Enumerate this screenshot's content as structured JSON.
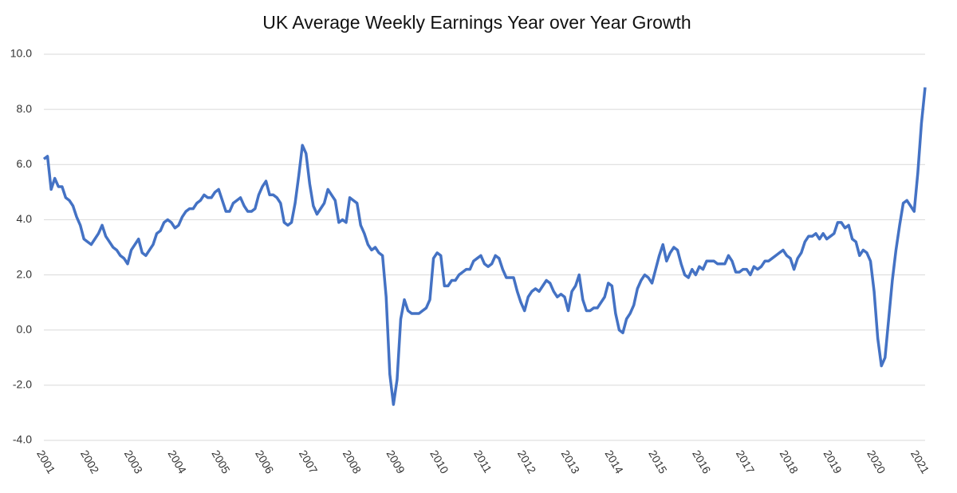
{
  "chart_data": {
    "type": "line",
    "title": "UK Average Weekly Earnings Year over Year Growth",
    "categories": [
      "2001",
      null,
      null,
      null,
      null,
      null,
      null,
      null,
      null,
      null,
      null,
      null,
      "2002",
      null,
      null,
      null,
      null,
      null,
      null,
      null,
      null,
      null,
      null,
      null,
      "2003",
      null,
      null,
      null,
      null,
      null,
      null,
      null,
      null,
      null,
      null,
      null,
      "2004",
      null,
      null,
      null,
      null,
      null,
      null,
      null,
      null,
      null,
      null,
      null,
      "2005",
      null,
      null,
      null,
      null,
      null,
      null,
      null,
      null,
      null,
      null,
      null,
      "2006",
      null,
      null,
      null,
      null,
      null,
      null,
      null,
      null,
      null,
      null,
      null,
      "2007",
      null,
      null,
      null,
      null,
      null,
      null,
      null,
      null,
      null,
      null,
      null,
      "2008",
      null,
      null,
      null,
      null,
      null,
      null,
      null,
      null,
      null,
      null,
      null,
      "2009",
      null,
      null,
      null,
      null,
      null,
      null,
      null,
      null,
      null,
      null,
      null,
      "2010",
      null,
      null,
      null,
      null,
      null,
      null,
      null,
      null,
      null,
      null,
      null,
      "2011",
      null,
      null,
      null,
      null,
      null,
      null,
      null,
      null,
      null,
      null,
      null,
      "2012",
      null,
      null,
      null,
      null,
      null,
      null,
      null,
      null,
      null,
      null,
      null,
      "2013",
      null,
      null,
      null,
      null,
      null,
      null,
      null,
      null,
      null,
      null,
      null,
      "2014",
      null,
      null,
      null,
      null,
      null,
      null,
      null,
      null,
      null,
      null,
      null,
      "2015",
      null,
      null,
      null,
      null,
      null,
      null,
      null,
      null,
      null,
      null,
      null,
      "2016",
      null,
      null,
      null,
      null,
      null,
      null,
      null,
      null,
      null,
      null,
      null,
      "2017",
      null,
      null,
      null,
      null,
      null,
      null,
      null,
      null,
      null,
      null,
      null,
      "2018",
      null,
      null,
      null,
      null,
      null,
      null,
      null,
      null,
      null,
      null,
      null,
      "2019",
      null,
      null,
      null,
      null,
      null,
      null,
      null,
      null,
      null,
      null,
      null,
      "2020",
      null,
      null,
      null,
      null,
      null,
      null,
      null,
      null,
      null,
      null,
      null,
      "2021",
      null,
      null
    ],
    "series": [
      {
        "color": "#4472c4",
        "values": [
          6.2,
          6.3,
          5.1,
          5.5,
          5.2,
          5.2,
          4.8,
          4.7,
          4.5,
          4.1,
          3.8,
          3.3,
          3.2,
          3.1,
          3.3,
          3.5,
          3.8,
          3.4,
          3.2,
          3.0,
          2.9,
          2.7,
          2.6,
          2.4,
          2.9,
          3.1,
          3.3,
          2.8,
          2.7,
          2.9,
          3.1,
          3.5,
          3.6,
          3.9,
          4.0,
          3.9,
          3.7,
          3.8,
          4.1,
          4.3,
          4.4,
          4.4,
          4.6,
          4.7,
          4.9,
          4.8,
          4.8,
          5.0,
          5.1,
          4.7,
          4.3,
          4.3,
          4.6,
          4.7,
          4.8,
          4.5,
          4.3,
          4.3,
          4.4,
          4.9,
          5.2,
          5.4,
          4.9,
          4.9,
          4.8,
          4.6,
          3.9,
          3.8,
          3.9,
          4.6,
          5.6,
          6.7,
          6.4,
          5.3,
          4.5,
          4.2,
          4.4,
          4.6,
          5.1,
          4.9,
          4.7,
          3.9,
          4.0,
          3.9,
          4.8,
          4.7,
          4.6,
          3.8,
          3.5,
          3.1,
          2.9,
          3.0,
          2.8,
          2.7,
          1.2,
          -1.6,
          -2.7,
          -1.8,
          0.4,
          1.1,
          0.7,
          0.6,
          0.6,
          0.6,
          0.7,
          0.8,
          1.1,
          2.6,
          2.8,
          2.7,
          1.6,
          1.6,
          1.8,
          1.8,
          2.0,
          2.1,
          2.2,
          2.2,
          2.5,
          2.6,
          2.7,
          2.4,
          2.3,
          2.4,
          2.7,
          2.6,
          2.2,
          1.9,
          1.9,
          1.9,
          1.4,
          1.0,
          0.7,
          1.2,
          1.4,
          1.5,
          1.4,
          1.6,
          1.8,
          1.7,
          1.4,
          1.2,
          1.3,
          1.2,
          0.7,
          1.4,
          1.6,
          2.0,
          1.1,
          0.7,
          0.7,
          0.8,
          0.8,
          1.0,
          1.2,
          1.7,
          1.6,
          0.6,
          0.0,
          -0.1,
          0.4,
          0.6,
          0.9,
          1.5,
          1.8,
          2.0,
          1.9,
          1.7,
          2.2,
          2.7,
          3.1,
          2.5,
          2.8,
          3.0,
          2.9,
          2.4,
          2.0,
          1.9,
          2.2,
          2.0,
          2.3,
          2.2,
          2.5,
          2.5,
          2.5,
          2.4,
          2.4,
          2.4,
          2.7,
          2.5,
          2.1,
          2.1,
          2.2,
          2.2,
          2.0,
          2.3,
          2.2,
          2.3,
          2.5,
          2.5,
          2.6,
          2.7,
          2.8,
          2.9,
          2.7,
          2.6,
          2.2,
          2.6,
          2.8,
          3.2,
          3.4,
          3.4,
          3.5,
          3.3,
          3.5,
          3.3,
          3.4,
          3.5,
          3.9,
          3.9,
          3.7,
          3.8,
          3.3,
          3.2,
          2.7,
          2.9,
          2.8,
          2.5,
          1.4,
          -0.3,
          -1.3,
          -1.0,
          0.4,
          1.8,
          2.9,
          3.8,
          4.6,
          4.7,
          4.5,
          4.3,
          5.7,
          7.5,
          8.8
        ]
      }
    ],
    "ylim": [
      -4,
      10
    ],
    "yticks": [
      {
        "value": -4,
        "label": "-4.0"
      },
      {
        "value": -2,
        "label": "-2.0"
      },
      {
        "value": 0,
        "label": "0.0"
      },
      {
        "value": 2,
        "label": "2.0"
      },
      {
        "value": 4,
        "label": "4.0"
      },
      {
        "value": 6,
        "label": "6.0"
      },
      {
        "value": 8,
        "label": "8.0"
      },
      {
        "value": 10,
        "label": "10.0"
      }
    ],
    "grid": true
  }
}
